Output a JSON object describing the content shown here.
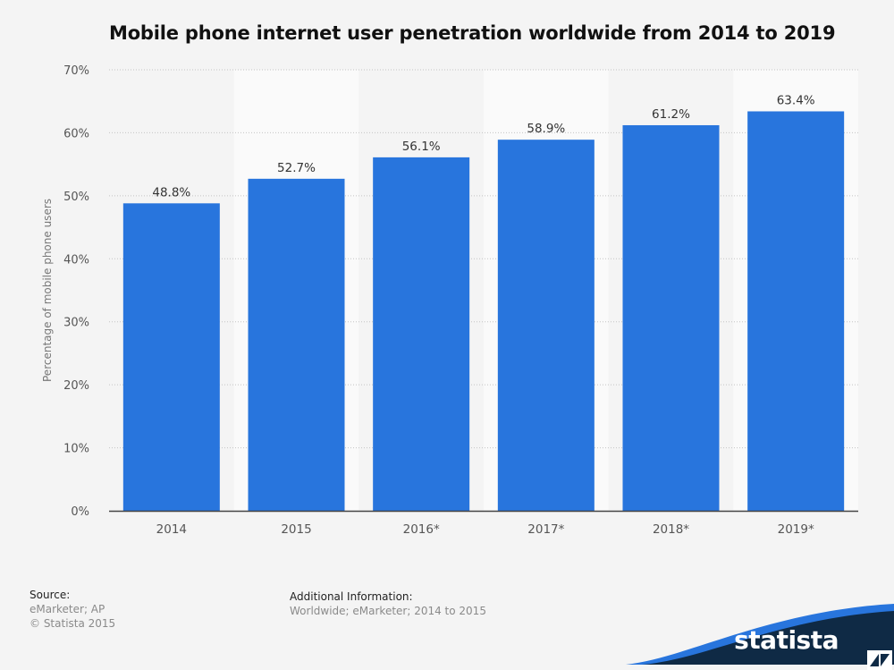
{
  "title": "Mobile phone internet user penetration worldwide from 2014 to 2019",
  "chart_data": {
    "type": "bar",
    "categories": [
      "2014",
      "2015",
      "2016*",
      "2017*",
      "2018*",
      "2019*"
    ],
    "values": [
      48.8,
      52.7,
      56.1,
      58.9,
      61.2,
      63.4
    ],
    "value_labels": [
      "48.8%",
      "52.7%",
      "56.1%",
      "58.9%",
      "61.2%",
      "63.4%"
    ],
    "ylabel": "Percentage of mobile phone users",
    "xlabel": "",
    "ylim": [
      0,
      70
    ],
    "yticks": [
      0,
      10,
      20,
      30,
      40,
      50,
      60,
      70
    ],
    "ytick_labels": [
      "0%",
      "10%",
      "20%",
      "30%",
      "40%",
      "50%",
      "60%",
      "70%"
    ],
    "grid": "horizontal dotted",
    "bar_color": "#2875dd"
  },
  "footer": {
    "source_heading": "Source:",
    "source_lines": [
      "eMarketer; AP",
      "© Statista 2015"
    ],
    "info_heading": "Additional Information:",
    "info_line": "Worldwide; eMarketer; 2014 to 2015"
  },
  "brand": {
    "name": "statista",
    "icon": "statista-logo-icon",
    "dark_color": "#0f2a45",
    "accent_color": "#2875dd"
  }
}
